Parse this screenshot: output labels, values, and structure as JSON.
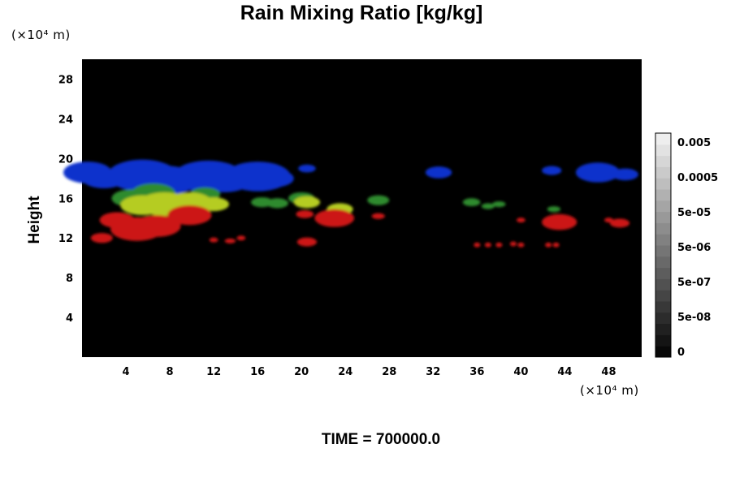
{
  "chart_data": {
    "type": "heatmap",
    "title": "Rain Mixing Ratio [kg/kg]",
    "ylabel": "Height",
    "xlabel": "",
    "y_unit": "(×10⁴ m)",
    "x_unit": "(×10⁴ m)",
    "xlim": [
      0,
      51
    ],
    "ylim": [
      0,
      30
    ],
    "x_ticks": [
      "4",
      "8",
      "12",
      "16",
      "20",
      "24",
      "28",
      "32",
      "36",
      "40",
      "44",
      "48"
    ],
    "y_ticks": [
      "4",
      "8",
      "12",
      "16",
      "20",
      "24",
      "28"
    ],
    "colorbar_labels": [
      "0.005",
      "0.0005",
      "5e-05",
      "5e-06",
      "5e-07",
      "5e-08",
      "0"
    ],
    "footer": "TIME = 700000.0",
    "background": "#000000",
    "features": [
      {
        "color": "#1133cc",
        "points": [
          [
            0.5,
            18.6,
            2.2
          ],
          [
            2.0,
            18.0,
            2.0
          ],
          [
            5.5,
            18.3,
            3.2
          ],
          [
            7.5,
            17.8,
            3.0
          ],
          [
            11.5,
            18.2,
            3.2
          ],
          [
            13.0,
            17.8,
            2.4
          ],
          [
            16.0,
            18.2,
            3.0
          ],
          [
            17.5,
            18.0,
            1.8
          ],
          [
            20.5,
            19.0,
            0.8
          ],
          [
            32.5,
            18.6,
            1.2
          ],
          [
            42.8,
            18.8,
            0.9
          ],
          [
            47.0,
            18.6,
            2.0
          ],
          [
            49.5,
            18.4,
            1.2
          ]
        ]
      },
      {
        "color": "#2e8b2e",
        "points": [
          [
            4.5,
            16.0,
            1.8
          ],
          [
            6.5,
            16.5,
            2.0
          ],
          [
            11.2,
            16.4,
            1.4
          ],
          [
            16.4,
            15.6,
            1.0
          ],
          [
            17.8,
            15.5,
            1.0
          ],
          [
            20.0,
            16.0,
            1.2
          ],
          [
            27.0,
            15.8,
            1.0
          ],
          [
            35.5,
            15.6,
            0.8
          ],
          [
            37.0,
            15.2,
            0.6
          ],
          [
            38.0,
            15.4,
            0.6
          ],
          [
            43.0,
            14.9,
            0.6
          ]
        ]
      },
      {
        "color": "#b5cc22",
        "points": [
          [
            5.5,
            15.3,
            2.0
          ],
          [
            7.5,
            15.4,
            2.4
          ],
          [
            9.8,
            15.6,
            2.0
          ],
          [
            12.0,
            15.4,
            1.4
          ],
          [
            20.5,
            15.6,
            1.2
          ],
          [
            23.5,
            14.9,
            1.2
          ]
        ]
      },
      {
        "color": "#cc1818",
        "points": [
          [
            1.8,
            12.0,
            1.0
          ],
          [
            3.2,
            13.8,
            1.6
          ],
          [
            5.0,
            12.9,
            2.4
          ],
          [
            6.8,
            13.2,
            2.2
          ],
          [
            9.8,
            14.3,
            2.0
          ],
          [
            12.0,
            11.8,
            0.4
          ],
          [
            13.5,
            11.7,
            0.5
          ],
          [
            14.5,
            12.0,
            0.4
          ],
          [
            20.5,
            11.6,
            0.9
          ],
          [
            20.3,
            14.4,
            0.8
          ],
          [
            23.0,
            14.0,
            1.8
          ],
          [
            27.0,
            14.2,
            0.6
          ],
          [
            36.0,
            11.3,
            0.3
          ],
          [
            37.0,
            11.3,
            0.3
          ],
          [
            38.0,
            11.3,
            0.3
          ],
          [
            39.3,
            11.4,
            0.3
          ],
          [
            40.0,
            11.3,
            0.3
          ],
          [
            40.0,
            13.8,
            0.4
          ],
          [
            42.5,
            11.3,
            0.3
          ],
          [
            43.2,
            11.3,
            0.3
          ],
          [
            43.5,
            13.6,
            1.6
          ],
          [
            48.0,
            13.8,
            0.4
          ],
          [
            49.0,
            13.5,
            0.9
          ]
        ]
      }
    ]
  }
}
